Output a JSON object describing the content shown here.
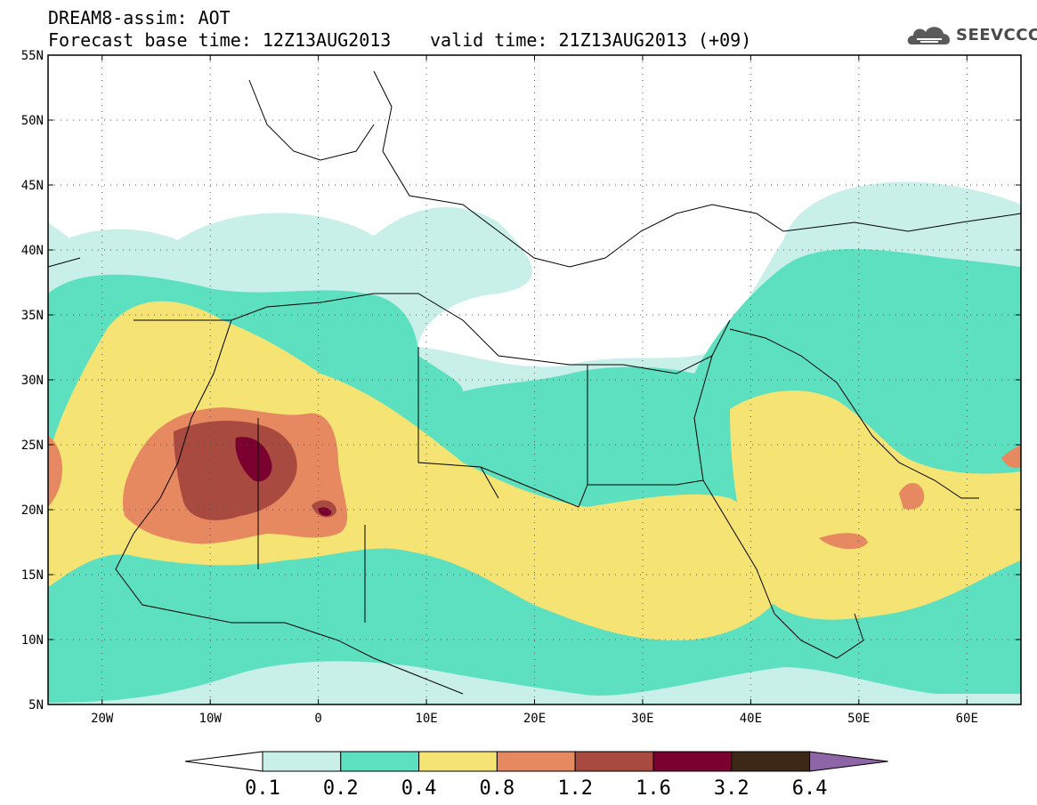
{
  "title": {
    "line1": "DREAM8-assim: AOT",
    "line2": "Forecast base time: 12Z13AUG2013",
    "valid": "valid time: 21Z13AUG2013 (+09)"
  },
  "logo": {
    "text": "SEEVCCC",
    "icon": "cloud-icon"
  },
  "map": {
    "lon_range": [
      -25,
      65
    ],
    "lat_range": [
      5,
      55
    ],
    "lat_ticks": [
      {
        "value": 55,
        "label": "55N"
      },
      {
        "value": 50,
        "label": "50N"
      },
      {
        "value": 45,
        "label": "45N"
      },
      {
        "value": 40,
        "label": "40N"
      },
      {
        "value": 35,
        "label": "35N"
      },
      {
        "value": 30,
        "label": "30N"
      },
      {
        "value": 25,
        "label": "25N"
      },
      {
        "value": 20,
        "label": "20N"
      },
      {
        "value": 15,
        "label": "15N"
      },
      {
        "value": 10,
        "label": "10N"
      },
      {
        "value": 5,
        "label": "5N"
      }
    ],
    "lon_ticks": [
      {
        "value": -20,
        "label": "20W"
      },
      {
        "value": -10,
        "label": "10W"
      },
      {
        "value": 0,
        "label": "0"
      },
      {
        "value": 10,
        "label": "10E"
      },
      {
        "value": 20,
        "label": "20E"
      },
      {
        "value": 30,
        "label": "30E"
      },
      {
        "value": 40,
        "label": "40E"
      },
      {
        "value": 50,
        "label": "50E"
      },
      {
        "value": 60,
        "label": "60E"
      }
    ],
    "grid": "dotted"
  },
  "colorbar": {
    "levels": [
      "0.1",
      "0.2",
      "0.4",
      "0.8",
      "1.2",
      "1.6",
      "3.2",
      "6.4"
    ],
    "colors": [
      "#ffffff",
      "#c8f0e8",
      "#5de0c0",
      "#f5e373",
      "#e68860",
      "#a84a40",
      "#7a0030",
      "#3d2818",
      "#8e66a8"
    ]
  }
}
